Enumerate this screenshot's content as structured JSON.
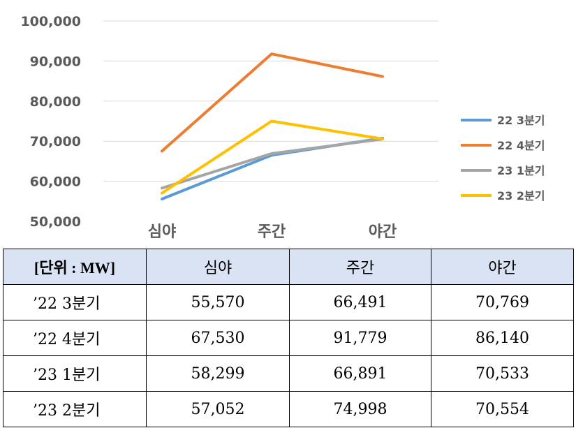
{
  "chart_data": {
    "type": "line",
    "categories": [
      "심야",
      "주간",
      "야간"
    ],
    "ylim": [
      50000,
      100000
    ],
    "yticks": [
      "50,000",
      "60,000",
      "70,000",
      "80,000",
      "90,000",
      "100,000"
    ],
    "grid": true,
    "legend_position": "right",
    "series": [
      {
        "name": "22 3분기",
        "color": "#5b9bd5",
        "values": [
          55570,
          66491,
          70769
        ]
      },
      {
        "name": "22 4분기",
        "color": "#ed7d31",
        "values": [
          67530,
          91779,
          86140
        ]
      },
      {
        "name": "23 1분기",
        "color": "#a5a5a5",
        "values": [
          58299,
          66891,
          70533
        ]
      },
      {
        "name": "23 2분기",
        "color": "#ffc000",
        "values": [
          57052,
          74998,
          70554
        ]
      }
    ]
  },
  "table": {
    "headers": [
      "[단위 : MW]",
      "심야",
      "주간",
      "야간"
    ],
    "rows": [
      {
        "label": "’22  3분기",
        "cells": [
          "55,570",
          "66,491",
          "70,769"
        ]
      },
      {
        "label": "’22  4분기",
        "cells": [
          "67,530",
          "91,779",
          "86,140"
        ]
      },
      {
        "label": "’23  1분기",
        "cells": [
          "58,299",
          "66,891",
          "70,533"
        ]
      },
      {
        "label": "’23  2분기",
        "cells": [
          "57,052",
          "74,998",
          "70,554"
        ]
      }
    ]
  }
}
